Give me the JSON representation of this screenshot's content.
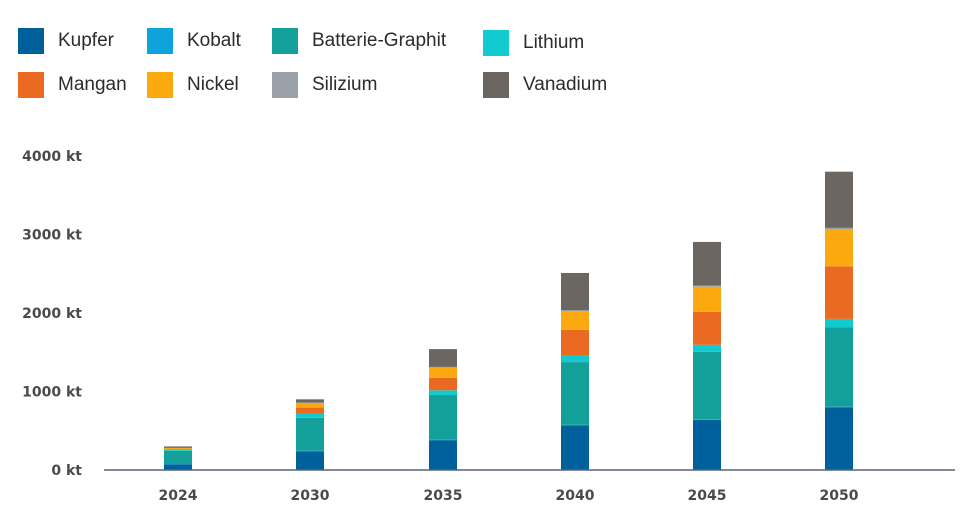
{
  "chart_data": {
    "type": "bar",
    "stacked": true,
    "categories": [
      "2024",
      "2030",
      "2035",
      "2040",
      "2045",
      "2050"
    ],
    "series": [
      {
        "name": "Kupfer",
        "color": "#00609c",
        "values": [
          70,
          240,
          380,
          570,
          640,
          800
        ]
      },
      {
        "name": "Kobalt",
        "color": "#0fa3dc",
        "values": [
          5,
          5,
          5,
          5,
          5,
          5
        ]
      },
      {
        "name": "Batterie-Graphit",
        "color": "#14a09a",
        "values": [
          170,
          420,
          570,
          800,
          860,
          1010
        ]
      },
      {
        "name": "Lithium",
        "color": "#12cbd0",
        "values": [
          10,
          50,
          60,
          90,
          90,
          110
        ]
      },
      {
        "name": "Mangan",
        "color": "#ea6a21",
        "values": [
          10,
          80,
          160,
          320,
          420,
          670
        ]
      },
      {
        "name": "Nickel",
        "color": "#fba90f",
        "values": [
          15,
          60,
          130,
          240,
          320,
          470
        ]
      },
      {
        "name": "Silizium",
        "color": "#9aa0a8",
        "values": [
          2,
          5,
          8,
          10,
          15,
          20
        ]
      },
      {
        "name": "Vanadium",
        "color": "#6c6661",
        "values": [
          18,
          40,
          227,
          475,
          555,
          715
        ]
      }
    ],
    "y_ticks": [
      "0 kt",
      "1000 kt",
      "2000 kt",
      "3000 kt",
      "4000 kt"
    ],
    "ylim": [
      0,
      4000
    ],
    "grid": false,
    "legend_position": "top-left",
    "title": "",
    "xlabel": "",
    "ylabel": ""
  }
}
